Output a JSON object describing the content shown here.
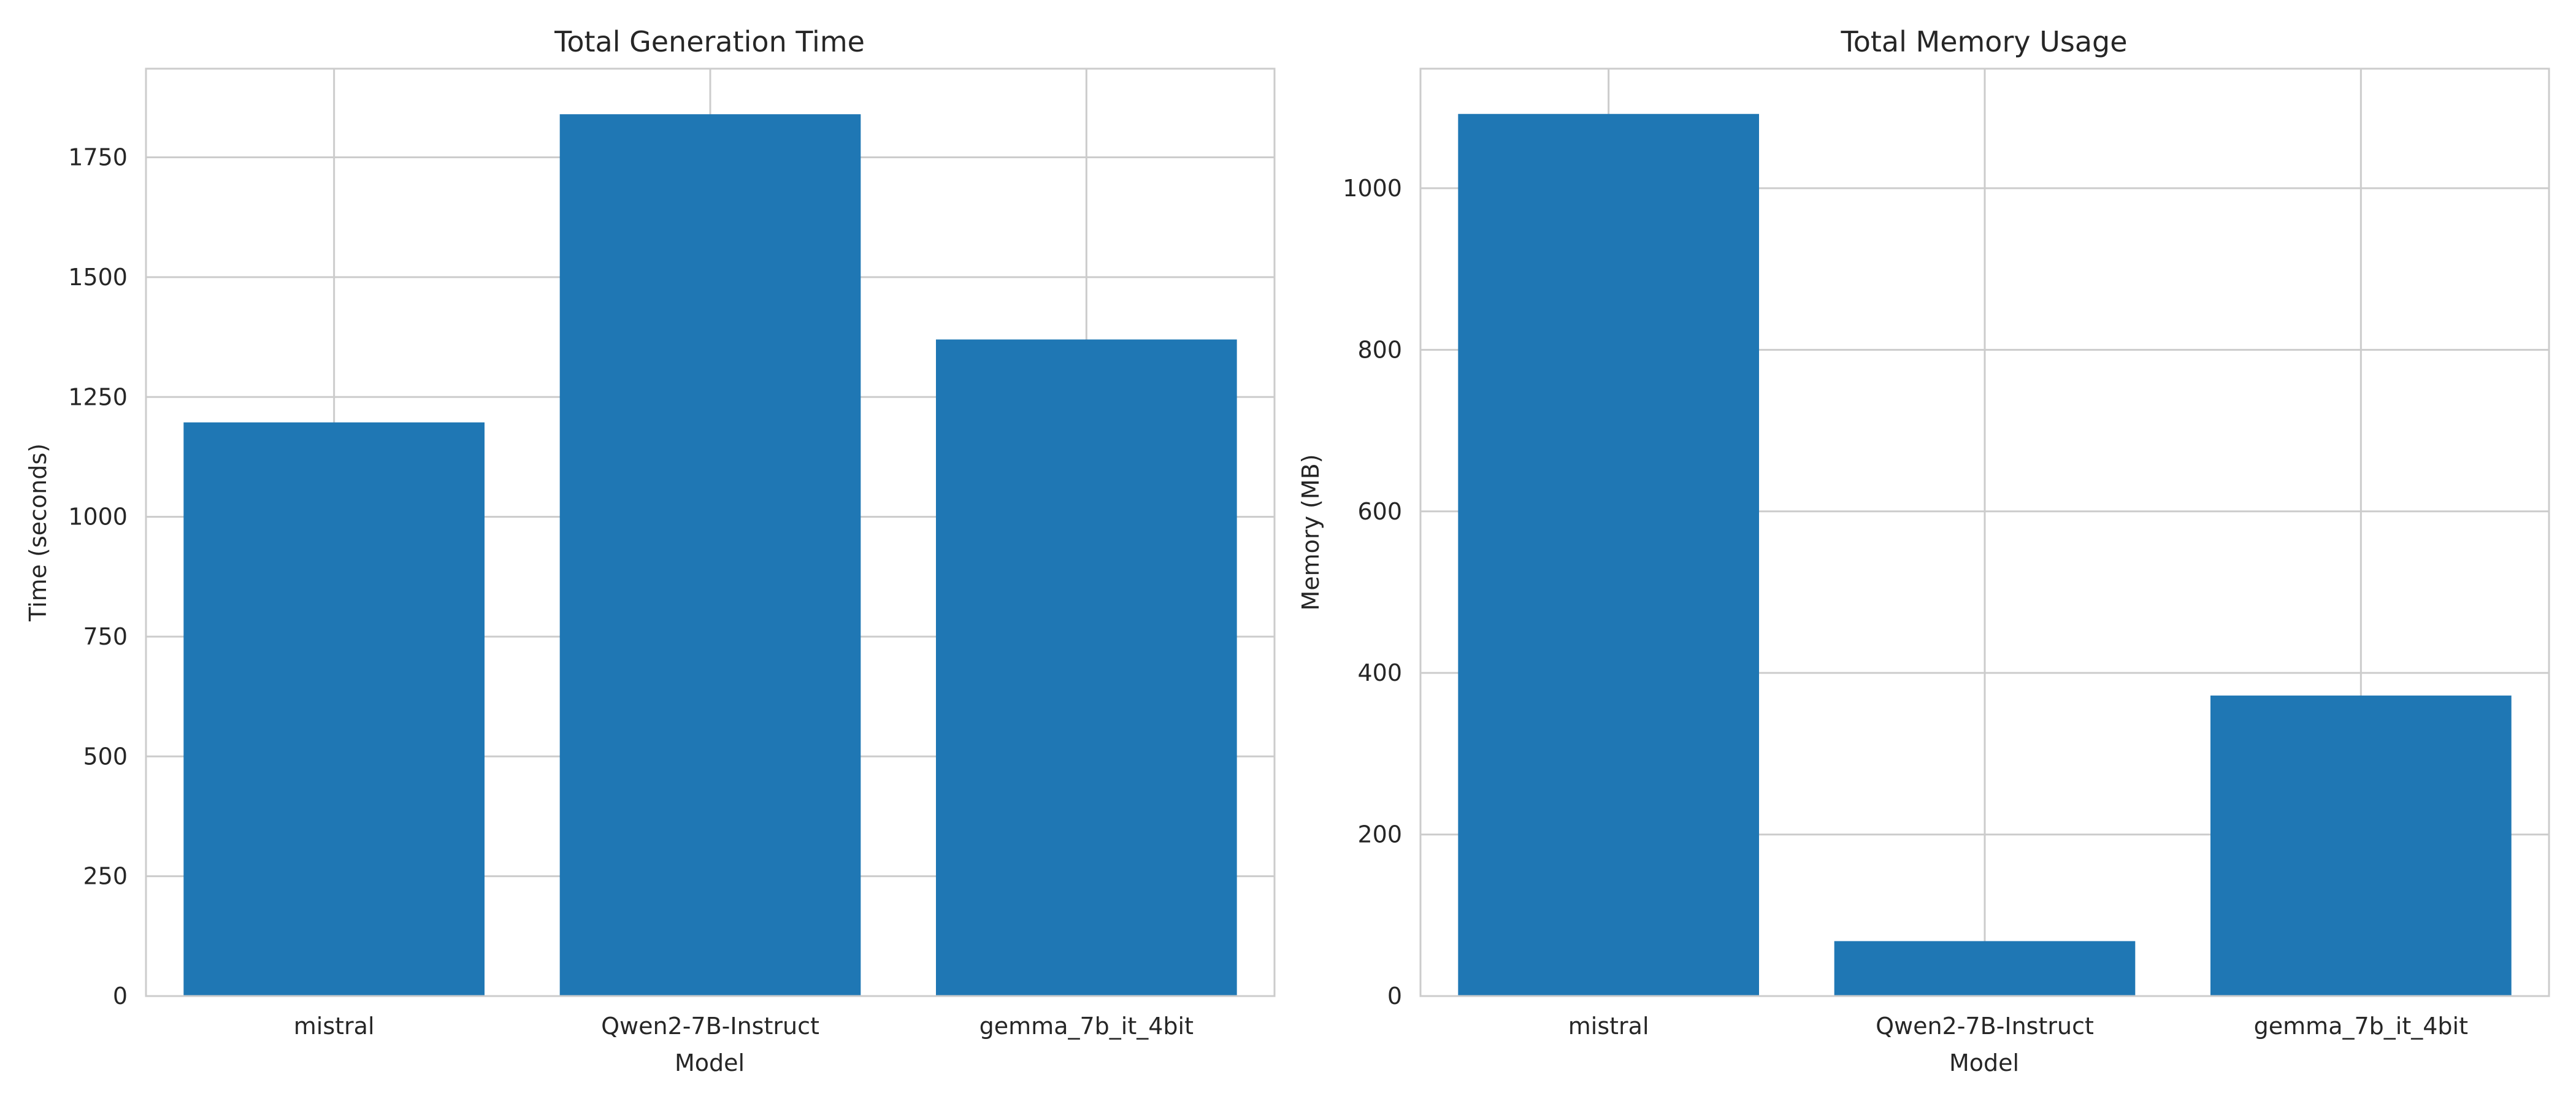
{
  "chart_data": [
    {
      "type": "bar",
      "title": "Total Generation Time",
      "xlabel": "Model",
      "ylabel": "Time (seconds)",
      "categories": [
        "mistral",
        "Qwen2-7B-Instruct",
        "gemma_7b_it_4bit"
      ],
      "values": [
        1197,
        1840,
        1370
      ],
      "ylim": [
        0,
        1935
      ],
      "yticks": [
        0,
        250,
        500,
        750,
        1000,
        1250,
        1500,
        1750
      ],
      "grid": true,
      "bar_color": "#1f77b4"
    },
    {
      "type": "bar",
      "title": "Total Memory Usage",
      "xlabel": "Model",
      "ylabel": "Memory (MB)",
      "categories": [
        "mistral",
        "Qwen2-7B-Instruct",
        "gemma_7b_it_4bit"
      ],
      "values": [
        1092,
        68,
        372
      ],
      "ylim": [
        0,
        1148
      ],
      "yticks": [
        0,
        200,
        400,
        600,
        800,
        1000
      ],
      "grid": true,
      "bar_color": "#1f77b4"
    }
  ]
}
